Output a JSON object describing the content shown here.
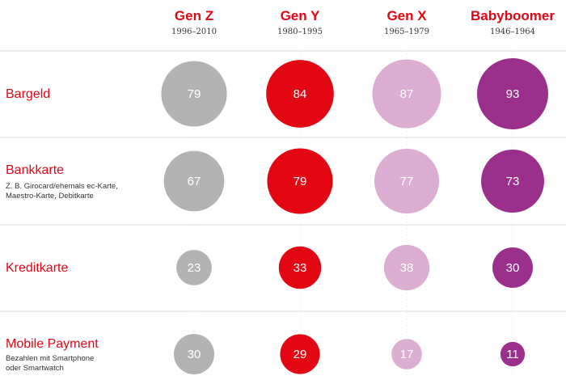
{
  "colors": {
    "accent": "#e30613",
    "gen_z": "#b3b3b3",
    "gen_y": "#e30613",
    "gen_x": "#dcaed2",
    "babyboomer": "#9b2f8c",
    "gridline": "#d9d9d9"
  },
  "chart_data": {
    "type": "bubble-matrix",
    "title": "",
    "categories": [
      {
        "label": "Bargeld",
        "sublabel": []
      },
      {
        "label": "Bankkarte",
        "sublabel": [
          "Z. B. Girocard/ehemals ec-Karte,",
          "Maestro-Karte, Debitkarte"
        ]
      },
      {
        "label": "Kreditkarte",
        "sublabel": []
      },
      {
        "label": "Mobile Payment",
        "sublabel": [
          "Bezahlen mit Smartphone",
          "oder Smartwatch"
        ]
      }
    ],
    "series": [
      {
        "name": "Gen Z",
        "years": "1996–2010",
        "color": "#b3b3b3",
        "values": [
          79,
          67,
          23,
          30
        ]
      },
      {
        "name": "Gen Y",
        "years": "1980–1995",
        "color": "#e30613",
        "values": [
          84,
          79,
          33,
          29
        ]
      },
      {
        "name": "Gen X",
        "years": "1965–1979",
        "color": "#dcaed2",
        "values": [
          87,
          77,
          38,
          17
        ]
      },
      {
        "name": "Babyboomer",
        "years": "1946–1964",
        "color": "#9b2f8c",
        "values": [
          93,
          73,
          30,
          11
        ]
      }
    ],
    "grid": true
  }
}
